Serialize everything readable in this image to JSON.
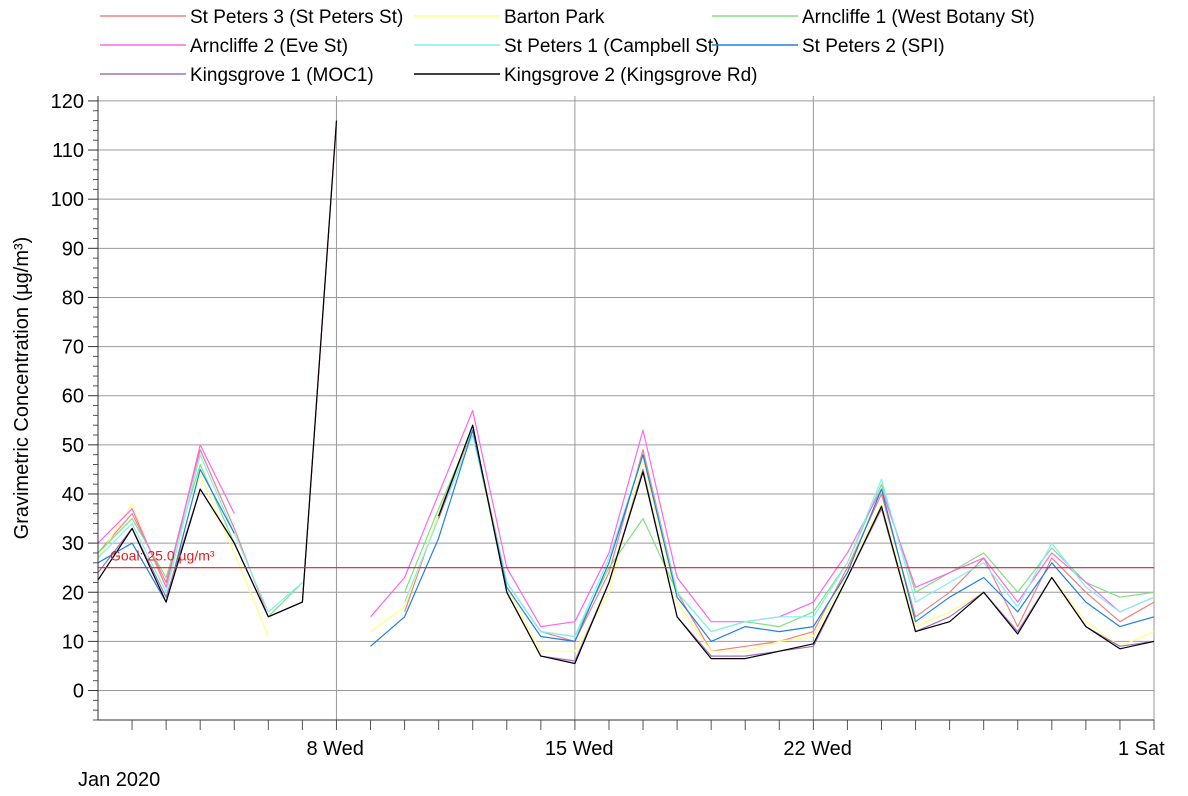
{
  "chart_data": {
    "type": "line",
    "ylabel": "Gravimetric Concentration (µg/m³)",
    "xlabel": "",
    "x_start_label": "Jan 2020",
    "ylim": [
      -6,
      121
    ],
    "yticks": [
      0,
      10,
      20,
      30,
      40,
      50,
      60,
      70,
      80,
      90,
      100,
      110,
      120
    ],
    "xlim": [
      "2020-01-01",
      "2020-02-01"
    ],
    "xticks": [
      {
        "date": "2020-01-08",
        "label": "8 Wed"
      },
      {
        "date": "2020-01-15",
        "label": "15 Wed"
      },
      {
        "date": "2020-01-22",
        "label": "22 Wed"
      },
      {
        "date": "2020-02-01",
        "label": "1 Sat"
      }
    ],
    "grid": true,
    "legend_position": "top",
    "goal": {
      "value": 25.0,
      "label": "Goal: 25.0 µg/m³",
      "color": "#e02020"
    },
    "series": [
      {
        "name": "St Peters 3 (St Peters St)",
        "color": "#f08080",
        "x": [
          "2020-01-01",
          "2020-01-02",
          "2020-01-03",
          "2020-01-04",
          "2020-01-05",
          "2020-01-06",
          "2020-01-07",
          "2020-01-08",
          null,
          "2020-01-10",
          "2020-01-11",
          "2020-01-12",
          "2020-01-13",
          "2020-01-14",
          "2020-01-15",
          "2020-01-16",
          "2020-01-17",
          "2020-01-18",
          "2020-01-19",
          "2020-01-20",
          "2020-01-21",
          "2020-01-22",
          "2020-01-23",
          "2020-01-24",
          "2020-01-25",
          "2020-01-26",
          "2020-01-27",
          "2020-01-28",
          "2020-01-29",
          "2020-01-30",
          "2020-01-31",
          "2020-02-01"
        ],
        "y": [
          28,
          36,
          22,
          49,
          33,
          15,
          18,
          116,
          null,
          16,
          36,
          53,
          22,
          12,
          10,
          24,
          49,
          20,
          8,
          9,
          10,
          12,
          25,
          40,
          15,
          20,
          27,
          13,
          27,
          20,
          14,
          18
        ]
      },
      {
        "name": "Barton Park",
        "color": "#ffff80",
        "x": [
          "2020-01-01",
          "2020-01-02",
          "2020-01-03",
          "2020-01-04",
          "2020-01-05",
          "2020-01-06",
          null,
          "2020-01-09",
          "2020-01-10",
          "2020-01-11",
          "2020-01-12",
          "2020-01-13",
          "2020-01-14",
          "2020-01-15",
          "2020-01-16",
          "2020-01-17",
          "2020-01-18",
          "2020-01-19",
          "2020-01-20",
          "2020-01-21",
          "2020-01-22",
          "2020-01-23",
          "2020-01-24",
          "2020-01-25",
          "2020-01-26",
          "2020-01-27",
          "2020-01-28",
          "2020-01-29",
          "2020-01-30",
          "2020-01-31",
          "2020-02-01"
        ],
        "y": [
          27,
          38,
          20,
          44,
          28,
          11,
          null,
          12,
          17,
          36,
          52,
          21,
          8,
          8,
          20,
          47,
          18,
          8,
          8,
          10,
          11,
          24,
          38,
          13,
          16,
          20,
          12,
          23,
          14,
          9,
          12
        ]
      },
      {
        "name": "Arncliffe 1 (West Botany St)",
        "color": "#80e080",
        "x": [
          "2020-01-01",
          "2020-01-02",
          "2020-01-03",
          "2020-01-04",
          "2020-01-05",
          "2020-01-06",
          "2020-01-07",
          null,
          "2020-01-10",
          "2020-01-11",
          "2020-01-12",
          "2020-01-13",
          "2020-01-14",
          "2020-01-15",
          "2020-01-16",
          "2020-01-17",
          "2020-01-18",
          "2020-01-19",
          "2020-01-20",
          "2020-01-21",
          "2020-01-22",
          "2020-01-23",
          "2020-01-24",
          "2020-01-25",
          "2020-01-26",
          "2020-01-27",
          "2020-01-28",
          "2020-01-29",
          "2020-01-30",
          "2020-01-31",
          "2020-02-01"
        ],
        "y": [
          28,
          35,
          23,
          46,
          30,
          15,
          22,
          null,
          20,
          37,
          53,
          22,
          12,
          11,
          25,
          35,
          20,
          12,
          14,
          13,
          16,
          26,
          42,
          20,
          24,
          28,
          20,
          29,
          22,
          19,
          20
        ]
      },
      {
        "name": "Arncliffe 2 (Eve St)",
        "color": "#ff66ee",
        "x": [
          "2020-01-01",
          "2020-01-02",
          "2020-01-03",
          "2020-01-04",
          "2020-01-05",
          null,
          "2020-01-09",
          "2020-01-10",
          "2020-01-11",
          "2020-01-12",
          "2020-01-13",
          "2020-01-14",
          "2020-01-15",
          "2020-01-16",
          "2020-01-17",
          "2020-01-18",
          "2020-01-19",
          "2020-01-20",
          "2020-01-21",
          "2020-01-22",
          "2020-01-23",
          "2020-01-24",
          "2020-01-25",
          "2020-01-26",
          "2020-01-27",
          "2020-01-28",
          "2020-01-29",
          "2020-01-30",
          "2020-01-31",
          "2020-02-01"
        ],
        "y": [
          30,
          37,
          21,
          50,
          36,
          null,
          15,
          23,
          40,
          57,
          25,
          13,
          14,
          28,
          53,
          23,
          14,
          14,
          15,
          18,
          28,
          41,
          21,
          24,
          27,
          18,
          28,
          22,
          16,
          19
        ]
      },
      {
        "name": "St Peters 1 (Campbell St)",
        "color": "#80f0f0",
        "x": [
          "2020-01-01",
          "2020-01-02",
          "2020-01-03",
          "2020-01-04",
          "2020-01-05",
          "2020-01-06",
          "2020-01-07",
          null,
          "2020-01-10",
          "2020-01-11",
          "2020-01-12",
          "2020-01-13",
          "2020-01-14",
          "2020-01-15",
          "2020-01-16",
          "2020-01-17",
          "2020-01-18",
          "2020-01-19",
          "2020-01-20",
          "2020-01-21",
          "2020-01-22",
          "2020-01-23",
          "2020-01-24",
          "2020-01-25",
          "2020-01-26",
          "2020-01-27",
          "2020-01-28",
          "2020-01-29",
          "2020-01-30",
          "2020-01-31",
          "2020-02-01"
        ],
        "y": [
          27,
          34,
          20,
          48,
          32,
          16,
          22,
          null,
          18,
          35,
          52,
          22,
          12,
          11,
          27,
          48,
          20,
          12,
          14,
          15,
          15,
          26,
          43,
          18,
          22,
          26,
          17,
          30,
          21,
          16,
          19
        ]
      },
      {
        "name": "St Peters 2 (SPI)",
        "color": "#2080e0",
        "x": [
          "2020-01-01",
          "2020-01-02",
          "2020-01-03",
          "2020-01-04",
          "2020-01-05",
          null,
          "2020-01-09",
          "2020-01-10",
          "2020-01-11",
          "2020-01-12",
          "2020-01-13",
          "2020-01-14",
          "2020-01-15",
          "2020-01-16",
          "2020-01-17",
          "2020-01-18",
          "2020-01-19",
          "2020-01-20",
          "2020-01-21",
          "2020-01-22",
          "2020-01-23",
          "2020-01-24",
          "2020-01-25",
          "2020-01-26",
          "2020-01-27",
          "2020-01-28",
          "2020-01-29",
          "2020-01-30",
          "2020-01-31",
          "2020-02-01"
        ],
        "y": [
          26,
          30,
          18,
          45,
          32,
          null,
          9,
          15,
          31,
          53,
          21,
          11,
          10,
          26,
          48,
          19,
          10,
          13,
          12,
          13,
          24,
          41,
          14,
          19,
          23,
          16,
          26,
          18,
          13,
          15
        ]
      },
      {
        "name": "Kingsgrove 1 (MOC1)",
        "color": "#a070c0",
        "x": [
          "2020-01-01",
          "2020-01-02",
          "2020-01-03",
          "2020-01-04",
          "2020-01-05",
          "2020-01-06",
          "2020-01-07",
          "2020-01-08",
          null,
          "2020-01-11",
          "2020-01-12",
          "2020-01-13",
          "2020-01-14",
          "2020-01-15",
          "2020-01-16",
          "2020-01-17",
          "2020-01-18",
          "2020-01-19",
          "2020-01-20",
          "2020-01-21",
          "2020-01-22",
          "2020-01-23",
          "2020-01-24",
          "2020-01-25",
          "2020-01-26",
          "2020-01-27",
          "2020-01-28",
          "2020-01-29",
          "2020-01-30",
          "2020-01-31",
          "2020-02-01"
        ],
        "y": [
          24,
          33,
          19,
          41,
          30,
          15,
          18,
          116,
          null,
          35,
          54,
          20,
          7,
          6,
          22,
          45,
          15,
          7,
          7,
          8,
          9,
          23,
          37,
          12,
          15,
          20,
          12,
          23,
          13,
          9,
          10
        ]
      },
      {
        "name": "Kingsgrove 2 (Kingsgrove Rd)",
        "color": "#000000",
        "x": [
          "2020-01-01",
          "2020-01-02",
          "2020-01-03",
          "2020-01-04",
          "2020-01-05",
          "2020-01-06",
          "2020-01-07",
          "2020-01-08",
          null,
          "2020-01-11",
          "2020-01-12",
          "2020-01-13",
          "2020-01-14",
          "2020-01-15",
          "2020-01-16",
          "2020-01-17",
          "2020-01-18",
          "2020-01-19",
          "2020-01-20",
          "2020-01-21",
          "2020-01-22",
          "2020-01-23",
          "2020-01-24",
          "2020-01-25",
          "2020-01-26",
          "2020-01-27",
          "2020-01-28",
          "2020-01-29",
          "2020-01-30",
          "2020-01-31",
          "2020-02-01"
        ],
        "y": [
          22.5,
          33,
          18,
          41,
          30,
          15,
          18,
          116,
          null,
          35.5,
          54,
          20,
          7,
          5.5,
          22,
          44.5,
          15,
          6.5,
          6.5,
          8,
          9.5,
          23,
          37.5,
          12,
          14,
          20,
          11.5,
          23,
          13,
          8.5,
          10
        ]
      }
    ]
  }
}
